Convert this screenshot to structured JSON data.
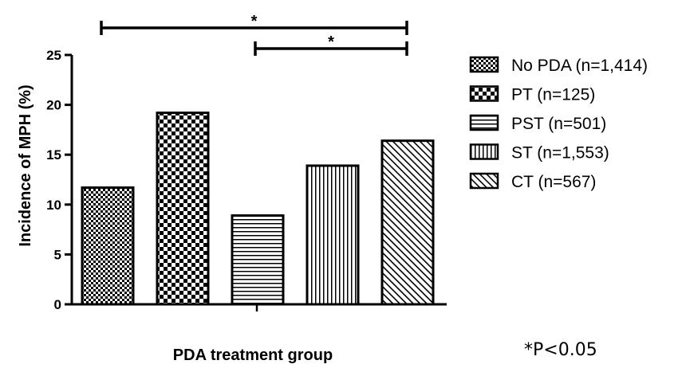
{
  "chart_data": {
    "type": "bar",
    "xlabel": "PDA treatment group",
    "ylabel": "Incidence of MPH (%)",
    "ylim": [
      0,
      25
    ],
    "yticks": [
      0,
      5,
      10,
      15,
      20,
      25
    ],
    "grid": false,
    "legend_position": "right",
    "series": [
      {
        "name": "No PDA (n=1,414)",
        "value": 11.7,
        "pattern": "checker"
      },
      {
        "name": "PT (n=125)",
        "value": 19.2,
        "pattern": "bigchecker"
      },
      {
        "name": "PST (n=501)",
        "value": 8.9,
        "pattern": "horizontal"
      },
      {
        "name": "ST (n=1,553)",
        "value": 13.9,
        "pattern": "vertical"
      },
      {
        "name": "CT (n=567)",
        "value": 16.4,
        "pattern": "diagonal"
      }
    ],
    "significance": [
      {
        "from": 0,
        "to": 4,
        "label": "*"
      },
      {
        "from": 2,
        "to": 4,
        "label": "*"
      }
    ],
    "footnote": "*P<0.05"
  }
}
